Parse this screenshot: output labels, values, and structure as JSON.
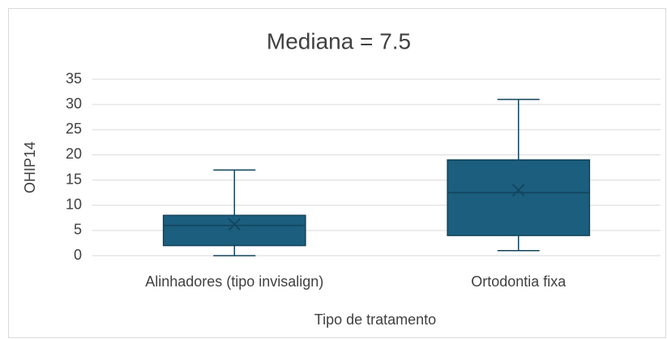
{
  "chart_data": {
    "type": "box",
    "title": "Mediana = 7.5",
    "x_label": "Tipo de tratamento",
    "y_label": "OHIP14",
    "categories": [
      "Alinhadores (tipo invisalign)",
      "Ortodontia fixa"
    ],
    "boxes": [
      {
        "min": 0,
        "q1": 2,
        "median": 6,
        "q3": 8,
        "max": 17,
        "mean": 6.2
      },
      {
        "min": 1,
        "q1": 4,
        "median": 12.5,
        "q3": 19,
        "max": 31,
        "mean": 13
      }
    ],
    "color": "#1b5e7d",
    "edge_color": "#13445c",
    "ylim": [
      0,
      35
    ],
    "yticks": [
      0,
      5,
      10,
      15,
      20,
      25,
      30,
      35
    ],
    "grid": true
  }
}
